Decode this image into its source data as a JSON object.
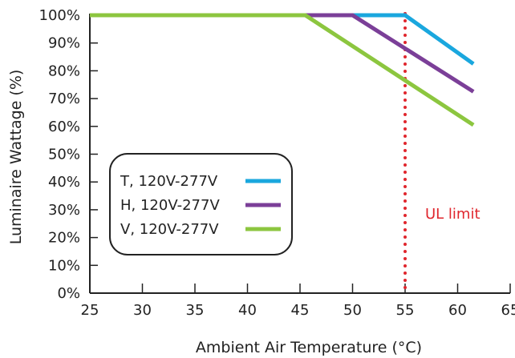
{
  "chart_data": {
    "type": "line",
    "title": "",
    "xlabel": "Ambient Air Temperature (°C)",
    "ylabel": "Luminaire Wattage (%)",
    "xlim": [
      25,
      65
    ],
    "ylim": [
      0,
      100
    ],
    "x_ticks": [
      25,
      30,
      35,
      40,
      45,
      50,
      55,
      60,
      65
    ],
    "x_tick_labels": [
      "25",
      "30",
      "35",
      "40",
      "45",
      "50",
      "55",
      "60",
      "65"
    ],
    "y_ticks": [
      0,
      10,
      20,
      30,
      40,
      50,
      60,
      70,
      80,
      90,
      100
    ],
    "y_tick_labels": [
      "0%",
      "10%",
      "20%",
      "30%",
      "40%",
      "50%",
      "60%",
      "70%",
      "80%",
      "90%",
      "100%"
    ],
    "grid": false,
    "legend_position": "left-center",
    "series": [
      {
        "name": "T, 120V-277V",
        "color": "#1aa7de",
        "x": [
          25,
          55,
          61.5
        ],
        "y": [
          100,
          100,
          82.5
        ]
      },
      {
        "name": "H, 120V-277V",
        "color": "#7b3f98",
        "x": [
          25,
          50,
          61.5
        ],
        "y": [
          100,
          100,
          72.5
        ]
      },
      {
        "name": "V, 120V-277V",
        "color": "#8cc63f",
        "x": [
          25,
          45.5,
          61.5
        ],
        "y": [
          100,
          100,
          60.5
        ]
      }
    ],
    "reference_line": {
      "x": 55,
      "style": "dotted",
      "color": "#e0262d",
      "label": "UL limit"
    }
  }
}
